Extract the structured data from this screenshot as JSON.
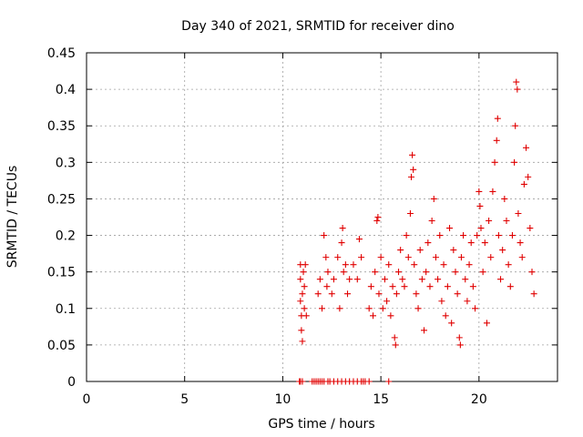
{
  "chart_data": {
    "type": "scatter",
    "title": "Day 340 of 2021, SRMTID for receiver dino",
    "xlabel": "GPS time / hours",
    "ylabel": "SRMTID / TECUs",
    "xlim": [
      0,
      24
    ],
    "ylim": [
      0,
      0.45
    ],
    "xticks": [
      0,
      5,
      10,
      15,
      20
    ],
    "xtick_labels": [
      "0",
      "5",
      "10",
      "15",
      "20"
    ],
    "yticks": [
      0,
      0.05,
      0.1,
      0.15,
      0.2,
      0.25,
      0.3,
      0.35,
      0.4,
      0.45
    ],
    "ytick_labels": [
      "0",
      "0.05",
      "0.1",
      "0.15",
      "0.2",
      "0.25",
      "0.3",
      "0.35",
      "0.4",
      "0.45"
    ],
    "grid": true,
    "marker": "plus",
    "color": "#e00000",
    "series": [
      {
        "name": "SRMTID",
        "points": [
          [
            10.9,
            0.16
          ],
          [
            10.9,
            0.14
          ],
          [
            10.9,
            0.11
          ],
          [
            10.95,
            0.09
          ],
          [
            10.95,
            0.07
          ],
          [
            11.0,
            0.055
          ],
          [
            11.0,
            0.12
          ],
          [
            11.05,
            0.15
          ],
          [
            11.1,
            0.1
          ],
          [
            11.1,
            0.13
          ],
          [
            11.15,
            0.16
          ],
          [
            11.2,
            0.09
          ],
          [
            11.8,
            0.12
          ],
          [
            11.9,
            0.14
          ],
          [
            12.0,
            0.1
          ],
          [
            12.1,
            0.2
          ],
          [
            12.2,
            0.17
          ],
          [
            12.25,
            0.13
          ],
          [
            12.3,
            0.15
          ],
          [
            12.5,
            0.12
          ],
          [
            12.6,
            0.14
          ],
          [
            12.8,
            0.17
          ],
          [
            12.9,
            0.1
          ],
          [
            13.0,
            0.19
          ],
          [
            13.05,
            0.21
          ],
          [
            13.1,
            0.15
          ],
          [
            13.2,
            0.16
          ],
          [
            13.3,
            0.12
          ],
          [
            13.4,
            0.14
          ],
          [
            13.6,
            0.16
          ],
          [
            13.8,
            0.14
          ],
          [
            13.9,
            0.195
          ],
          [
            14.0,
            0.17
          ],
          [
            14.4,
            0.1
          ],
          [
            14.5,
            0.13
          ],
          [
            14.6,
            0.09
          ],
          [
            14.7,
            0.15
          ],
          [
            14.8,
            0.22
          ],
          [
            14.85,
            0.225
          ],
          [
            14.9,
            0.12
          ],
          [
            15.0,
            0.17
          ],
          [
            15.1,
            0.1
          ],
          [
            15.2,
            0.14
          ],
          [
            15.3,
            0.11
          ],
          [
            15.4,
            0.16
          ],
          [
            15.5,
            0.09
          ],
          [
            15.6,
            0.13
          ],
          [
            15.7,
            0.06
          ],
          [
            15.75,
            0.05
          ],
          [
            15.8,
            0.12
          ],
          [
            15.9,
            0.15
          ],
          [
            16.0,
            0.18
          ],
          [
            16.1,
            0.14
          ],
          [
            16.2,
            0.13
          ],
          [
            16.3,
            0.2
          ],
          [
            16.4,
            0.17
          ],
          [
            16.5,
            0.23
          ],
          [
            16.55,
            0.28
          ],
          [
            16.6,
            0.31
          ],
          [
            16.65,
            0.29
          ],
          [
            16.7,
            0.16
          ],
          [
            16.8,
            0.12
          ],
          [
            16.9,
            0.1
          ],
          [
            17.0,
            0.18
          ],
          [
            17.1,
            0.14
          ],
          [
            17.2,
            0.07
          ],
          [
            17.3,
            0.15
          ],
          [
            17.4,
            0.19
          ],
          [
            17.5,
            0.13
          ],
          [
            17.6,
            0.22
          ],
          [
            17.7,
            0.25
          ],
          [
            17.8,
            0.17
          ],
          [
            17.9,
            0.14
          ],
          [
            18.0,
            0.2
          ],
          [
            18.1,
            0.11
          ],
          [
            18.2,
            0.16
          ],
          [
            18.3,
            0.09
          ],
          [
            18.4,
            0.13
          ],
          [
            18.5,
            0.21
          ],
          [
            18.6,
            0.08
          ],
          [
            18.7,
            0.18
          ],
          [
            18.8,
            0.15
          ],
          [
            18.9,
            0.12
          ],
          [
            19.0,
            0.06
          ],
          [
            19.05,
            0.05
          ],
          [
            19.1,
            0.17
          ],
          [
            19.2,
            0.2
          ],
          [
            19.3,
            0.14
          ],
          [
            19.4,
            0.11
          ],
          [
            19.5,
            0.16
          ],
          [
            19.6,
            0.19
          ],
          [
            19.7,
            0.13
          ],
          [
            19.8,
            0.1
          ],
          [
            19.9,
            0.2
          ],
          [
            20.0,
            0.26
          ],
          [
            20.05,
            0.24
          ],
          [
            20.1,
            0.21
          ],
          [
            20.2,
            0.15
          ],
          [
            20.3,
            0.19
          ],
          [
            20.4,
            0.08
          ],
          [
            20.5,
            0.22
          ],
          [
            20.6,
            0.17
          ],
          [
            20.7,
            0.26
          ],
          [
            20.8,
            0.3
          ],
          [
            20.9,
            0.33
          ],
          [
            20.95,
            0.36
          ],
          [
            21.0,
            0.2
          ],
          [
            21.1,
            0.14
          ],
          [
            21.2,
            0.18
          ],
          [
            21.3,
            0.25
          ],
          [
            21.4,
            0.22
          ],
          [
            21.5,
            0.16
          ],
          [
            21.6,
            0.13
          ],
          [
            21.7,
            0.2
          ],
          [
            21.8,
            0.3
          ],
          [
            21.85,
            0.35
          ],
          [
            21.9,
            0.41
          ],
          [
            21.95,
            0.4
          ],
          [
            22.0,
            0.23
          ],
          [
            22.1,
            0.19
          ],
          [
            22.2,
            0.17
          ],
          [
            22.3,
            0.27
          ],
          [
            22.4,
            0.32
          ],
          [
            22.5,
            0.28
          ],
          [
            22.6,
            0.21
          ],
          [
            22.7,
            0.15
          ],
          [
            22.8,
            0.12
          ],
          [
            10.85,
            0
          ],
          [
            10.9,
            0
          ],
          [
            11.0,
            0
          ],
          [
            11.5,
            0
          ],
          [
            11.6,
            0
          ],
          [
            11.7,
            0
          ],
          [
            11.8,
            0
          ],
          [
            11.9,
            0
          ],
          [
            12.0,
            0
          ],
          [
            12.1,
            0
          ],
          [
            12.3,
            0
          ],
          [
            12.4,
            0
          ],
          [
            12.6,
            0
          ],
          [
            12.8,
            0
          ],
          [
            13.0,
            0
          ],
          [
            13.2,
            0
          ],
          [
            13.4,
            0
          ],
          [
            13.6,
            0
          ],
          [
            13.8,
            0
          ],
          [
            14.0,
            0
          ],
          [
            14.1,
            0
          ],
          [
            14.2,
            0
          ],
          [
            14.4,
            0
          ],
          [
            15.4,
            0
          ]
        ]
      }
    ]
  }
}
